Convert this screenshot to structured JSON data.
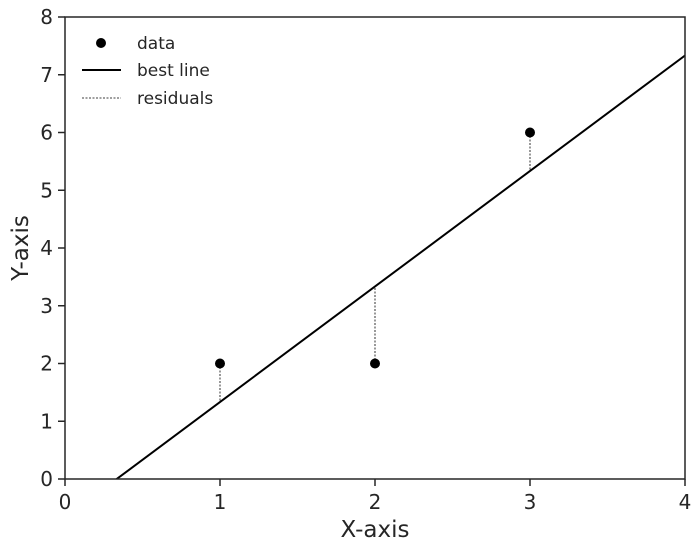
{
  "chart_data": {
    "type": "scatter",
    "xlabel": "X-axis",
    "ylabel": "Y-axis",
    "xlim": [
      0,
      4
    ],
    "ylim": [
      0,
      8
    ],
    "xticks": [
      "0",
      "1",
      "2",
      "3",
      "4"
    ],
    "yticks": [
      "0",
      "1",
      "2",
      "3",
      "4",
      "5",
      "6",
      "7",
      "8"
    ],
    "grid": false,
    "legend_position": "top-left",
    "points": {
      "name": "data",
      "x": [
        1,
        2,
        3
      ],
      "y": [
        2,
        2,
        6
      ]
    },
    "best_line": {
      "name": "best line",
      "slope": 2,
      "intercept": -0.667
    },
    "residuals": {
      "name": "residuals"
    },
    "colors": {
      "points": "#000000",
      "line": "#000000",
      "residuals": "#000000",
      "axes": "#262626"
    }
  }
}
